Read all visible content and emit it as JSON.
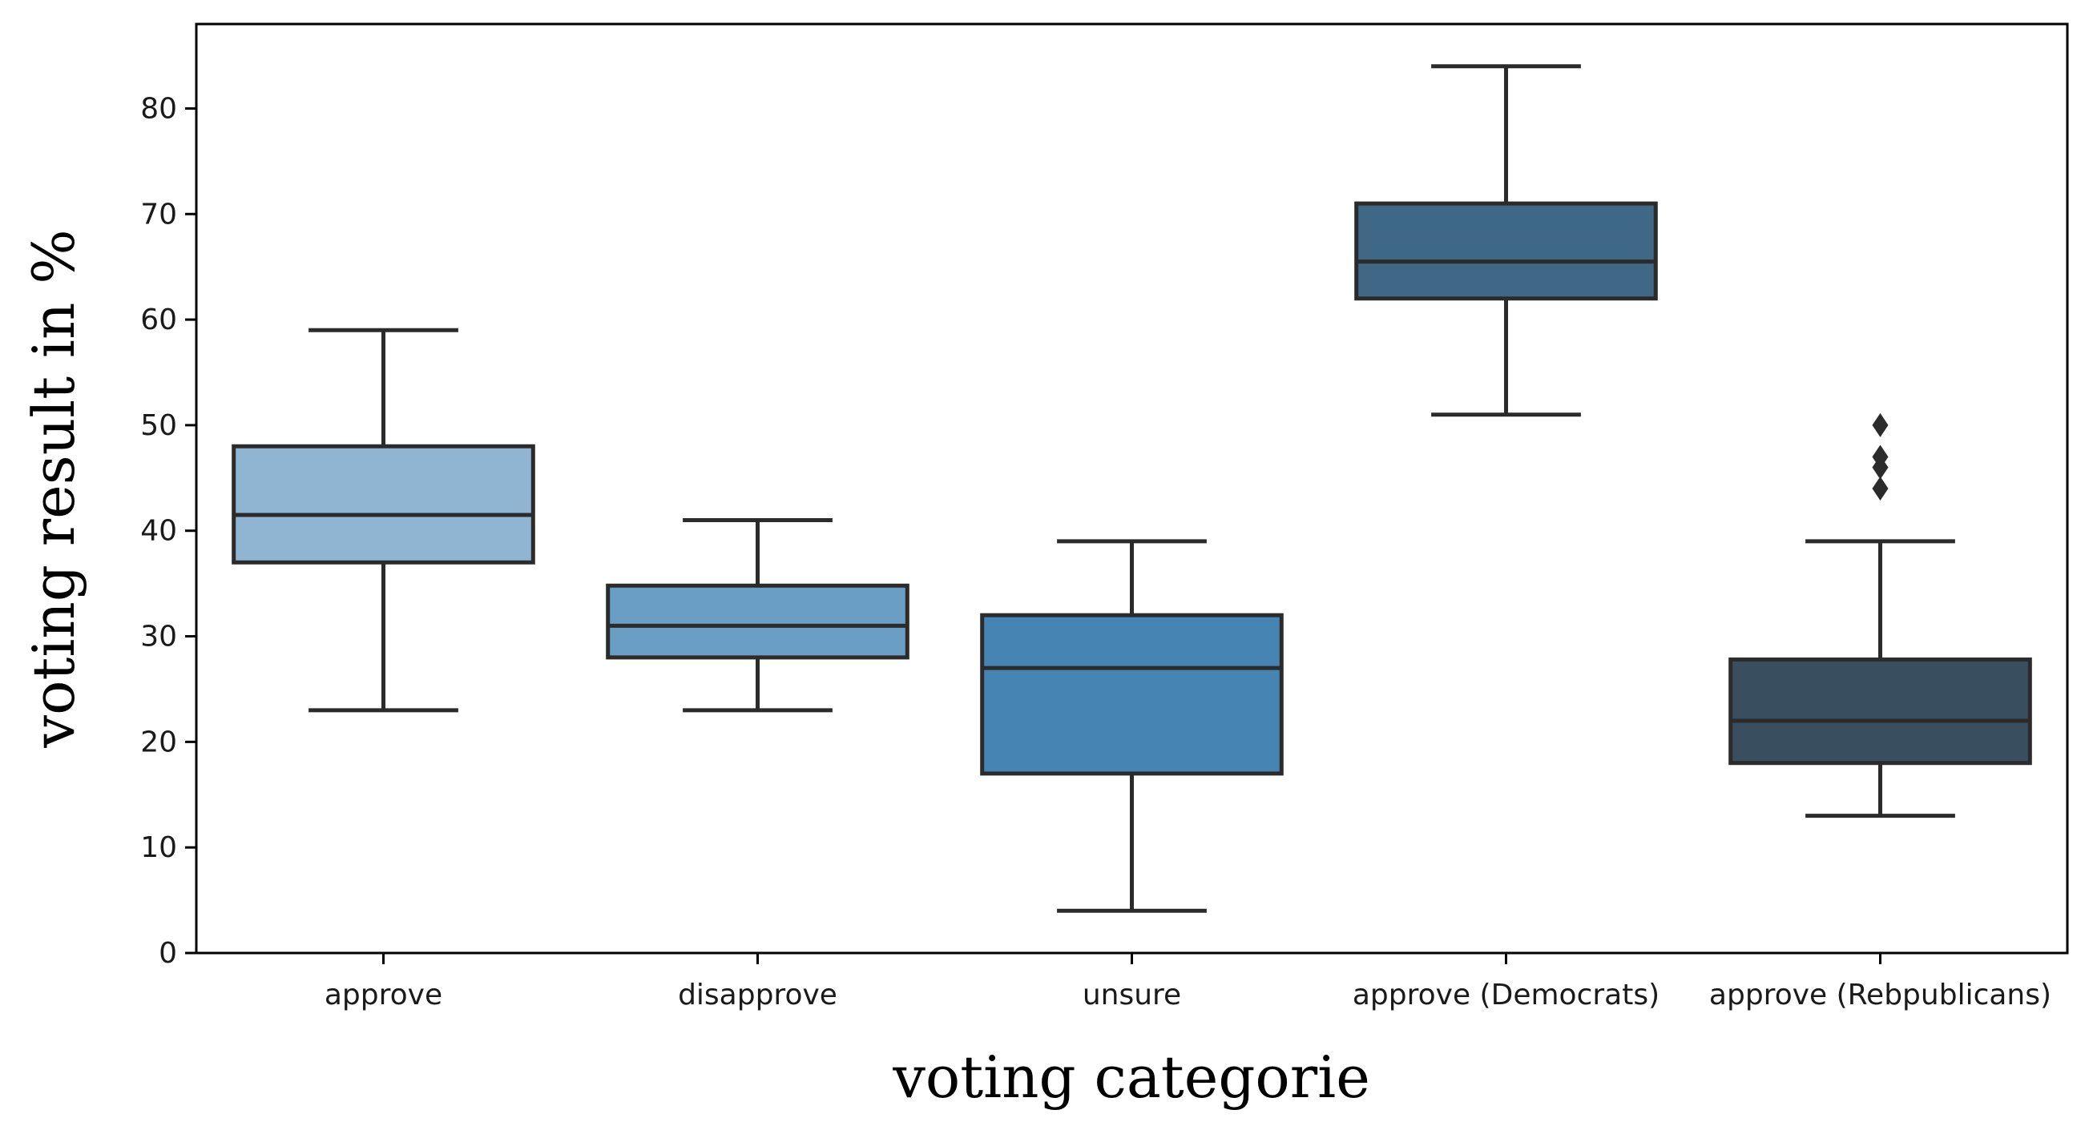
{
  "chart_data": {
    "type": "box",
    "xlabel": "voting categorie",
    "ylabel": "voting result in %",
    "ylim": [
      0,
      88
    ],
    "yticks": [
      0,
      10,
      20,
      30,
      40,
      50,
      60,
      70,
      80
    ],
    "grid": false,
    "categories": [
      "approve",
      "disapprove",
      "unsure",
      "approve (Democrats)",
      "approve (Rebpublicans)"
    ],
    "boxes": [
      {
        "category": "approve",
        "whisker_low": 23,
        "q1": 37,
        "median": 41.5,
        "q3": 48,
        "whisker_high": 59,
        "outliers": [],
        "color": "#8fb5d3"
      },
      {
        "category": "disapprove",
        "whisker_low": 23,
        "q1": 28,
        "median": 31,
        "q3": 34.8,
        "whisker_high": 41,
        "outliers": [],
        "color": "#6b9ec5"
      },
      {
        "category": "unsure",
        "whisker_low": 4,
        "q1": 17,
        "median": 27,
        "q3": 32,
        "whisker_high": 39,
        "outliers": [],
        "color": "#4684b4"
      },
      {
        "category": "approve (Democrats)",
        "whisker_low": 51,
        "q1": 62,
        "median": 65.5,
        "q3": 71,
        "whisker_high": 84,
        "outliers": [],
        "color": "#3f6786"
      },
      {
        "category": "approve (Rebpublicans)",
        "whisker_low": 13,
        "q1": 18,
        "median": 22,
        "q3": 27.8,
        "whisker_high": 39,
        "outliers": [
          44,
          46,
          47,
          50
        ],
        "color": "#394e5e"
      }
    ],
    "line_color": "#2b2b2b"
  }
}
